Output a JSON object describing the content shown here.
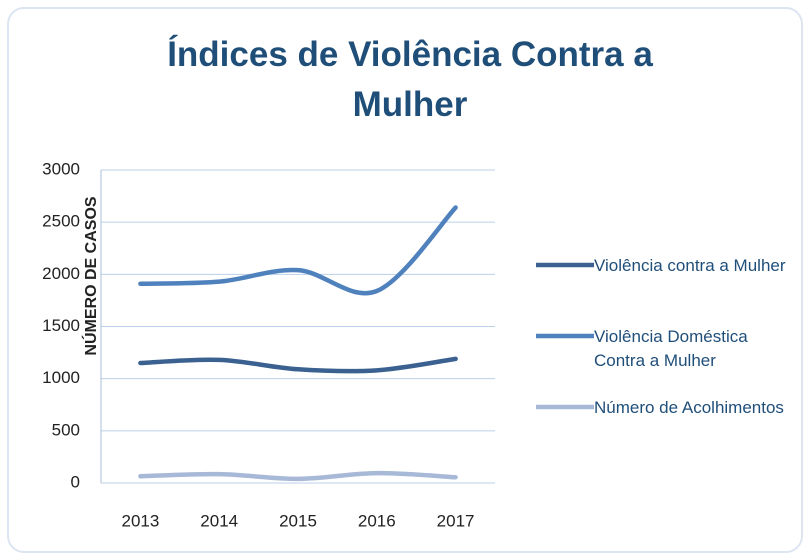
{
  "chart_data": {
    "type": "line",
    "title": "Índices de Violência Contra a Mulher",
    "y_label": "NÚMERO DE CASOS",
    "categories": [
      "2013",
      "2014",
      "2015",
      "2016",
      "2017"
    ],
    "series": [
      {
        "name": "Violência contra a Mulher",
        "color": "#3b6191",
        "values": [
          1150,
          1180,
          1090,
          1080,
          1190
        ]
      },
      {
        "name": "Violência Doméstica Contra a Mulher",
        "color": "#4f81bd",
        "values": [
          1910,
          1930,
          2040,
          1840,
          2640
        ]
      },
      {
        "name": "Número de Acolhimentos",
        "color": "#a7b9d7",
        "values": [
          65,
          85,
          40,
          95,
          55
        ]
      }
    ],
    "ylim": [
      0,
      3000
    ],
    "yticks": [
      0,
      500,
      1000,
      1500,
      2000,
      2500,
      3000
    ],
    "grid": true,
    "smooth": true,
    "legend": "right"
  }
}
